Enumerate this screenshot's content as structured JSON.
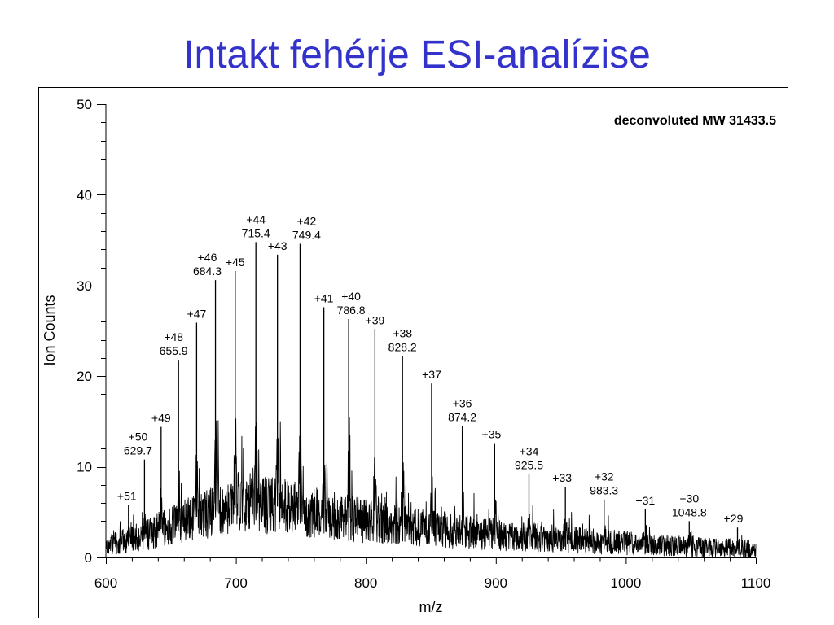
{
  "slide": {
    "title": "Intakt fehérje ESI-analízise"
  },
  "colors": {
    "title": "#3333CC",
    "trace": "#000000"
  },
  "chart_data": {
    "type": "line",
    "xlabel": "m/z",
    "ylabel": "Ion Counts",
    "xlim": [
      600,
      1100
    ],
    "ylim": [
      0,
      50
    ],
    "x_ticks": [
      600,
      700,
      800,
      900,
      1000,
      1100
    ],
    "y_ticks": [
      0,
      10,
      20,
      30,
      40,
      50
    ],
    "annotation": "deconvoluted MW 31433.5",
    "grid": false,
    "peaks": [
      {
        "charge": "+51",
        "mz": 617.4,
        "intensity": 5.8,
        "label_mz": false
      },
      {
        "charge": "+50",
        "mz": 629.7,
        "intensity": 10.8,
        "label_mz": true
      },
      {
        "charge": "+49",
        "mz": 642.5,
        "intensity": 14.4,
        "label_mz": false
      },
      {
        "charge": "+48",
        "mz": 655.9,
        "intensity": 21.8,
        "label_mz": true
      },
      {
        "charge": "+47",
        "mz": 669.8,
        "intensity": 25.9,
        "label_mz": false
      },
      {
        "charge": "+46",
        "mz": 684.3,
        "intensity": 30.6,
        "label_mz": true
      },
      {
        "charge": "+45",
        "mz": 699.5,
        "intensity": 31.6,
        "label_mz": false
      },
      {
        "charge": "+44",
        "mz": 715.4,
        "intensity": 34.8,
        "label_mz": true
      },
      {
        "charge": "+43",
        "mz": 732.0,
        "intensity": 33.4,
        "label_mz": false
      },
      {
        "charge": "+42",
        "mz": 749.4,
        "intensity": 34.6,
        "label_mz": true
      },
      {
        "charge": "+41",
        "mz": 767.7,
        "intensity": 27.6,
        "label_mz": false
      },
      {
        "charge": "+40",
        "mz": 786.8,
        "intensity": 26.3,
        "label_mz": true
      },
      {
        "charge": "+39",
        "mz": 807.0,
        "intensity": 25.2,
        "label_mz": false
      },
      {
        "charge": "+38",
        "mz": 828.2,
        "intensity": 22.2,
        "label_mz": true
      },
      {
        "charge": "+37",
        "mz": 850.6,
        "intensity": 19.2,
        "label_mz": false
      },
      {
        "charge": "+36",
        "mz": 874.2,
        "intensity": 14.5,
        "label_mz": true
      },
      {
        "charge": "+35",
        "mz": 899.1,
        "intensity": 12.6,
        "label_mz": false
      },
      {
        "charge": "+34",
        "mz": 925.5,
        "intensity": 9.2,
        "label_mz": true
      },
      {
        "charge": "+33",
        "mz": 953.5,
        "intensity": 7.8,
        "label_mz": false
      },
      {
        "charge": "+32",
        "mz": 983.3,
        "intensity": 6.4,
        "label_mz": true
      },
      {
        "charge": "+31",
        "mz": 1015.0,
        "intensity": 5.3,
        "label_mz": false
      },
      {
        "charge": "+30",
        "mz": 1048.8,
        "intensity": 4.0,
        "label_mz": true
      },
      {
        "charge": "+29",
        "mz": 1085.9,
        "intensity": 3.3,
        "label_mz": false
      }
    ],
    "baseline": {
      "x": [
        600,
        620,
        640,
        660,
        680,
        700,
        720,
        740,
        760,
        780,
        800,
        850,
        900,
        950,
        1000,
        1050,
        1100
      ],
      "y": [
        1.2,
        2.0,
        3.0,
        4.0,
        5.0,
        5.5,
        5.8,
        5.5,
        5.0,
        4.5,
        4.0,
        3.2,
        2.5,
        2.0,
        1.6,
        1.2,
        0.9
      ]
    }
  }
}
